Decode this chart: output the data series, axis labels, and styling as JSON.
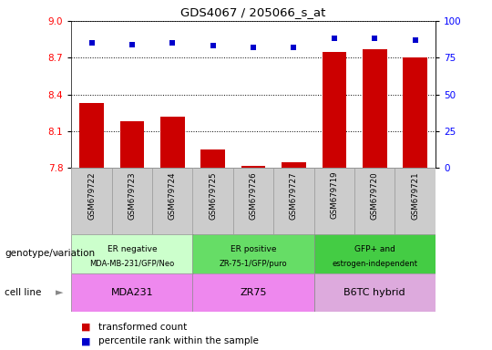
{
  "title": "GDS4067 / 205066_s_at",
  "samples": [
    "GSM679722",
    "GSM679723",
    "GSM679724",
    "GSM679725",
    "GSM679726",
    "GSM679727",
    "GSM679719",
    "GSM679720",
    "GSM679721"
  ],
  "transformed_count": [
    8.33,
    8.18,
    8.22,
    7.95,
    7.82,
    7.85,
    8.75,
    8.77,
    8.7
  ],
  "percentile_rank": [
    85,
    84,
    85,
    83,
    82,
    82,
    88,
    88,
    87
  ],
  "ylim_left": [
    7.8,
    9.0
  ],
  "ylim_right": [
    0,
    100
  ],
  "yticks_left": [
    7.8,
    8.1,
    8.4,
    8.7,
    9.0
  ],
  "yticks_right": [
    0,
    25,
    50,
    75,
    100
  ],
  "bar_color": "#cc0000",
  "dot_color": "#0000cc",
  "groups": [
    {
      "label_top": "ER negative",
      "label_bot": "MDA-MB-231/GFP/Neo",
      "cell_line": "MDA231",
      "start": 0,
      "end": 3,
      "color_geno": "#ccffcc",
      "color_cell": "#ee88ee"
    },
    {
      "label_top": "ER positive",
      "label_bot": "ZR-75-1/GFP/puro",
      "cell_line": "ZR75",
      "start": 3,
      "end": 6,
      "color_geno": "#66dd66",
      "color_cell": "#ee88ee"
    },
    {
      "label_top": "GFP+ and",
      "label_bot": "estrogen-independent",
      "cell_line": "B6TC hybrid",
      "start": 6,
      "end": 9,
      "color_geno": "#44cc44",
      "color_cell": "#ddaadd"
    }
  ],
  "xlabel_geno": "genotype/variation",
  "xlabel_cell": "cell line",
  "legend_items": [
    {
      "label": "transformed count",
      "color": "#cc0000"
    },
    {
      "label": "percentile rank within the sample",
      "color": "#0000cc"
    }
  ],
  "tick_bg_color": "#cccccc",
  "tick_border_color": "#999999"
}
